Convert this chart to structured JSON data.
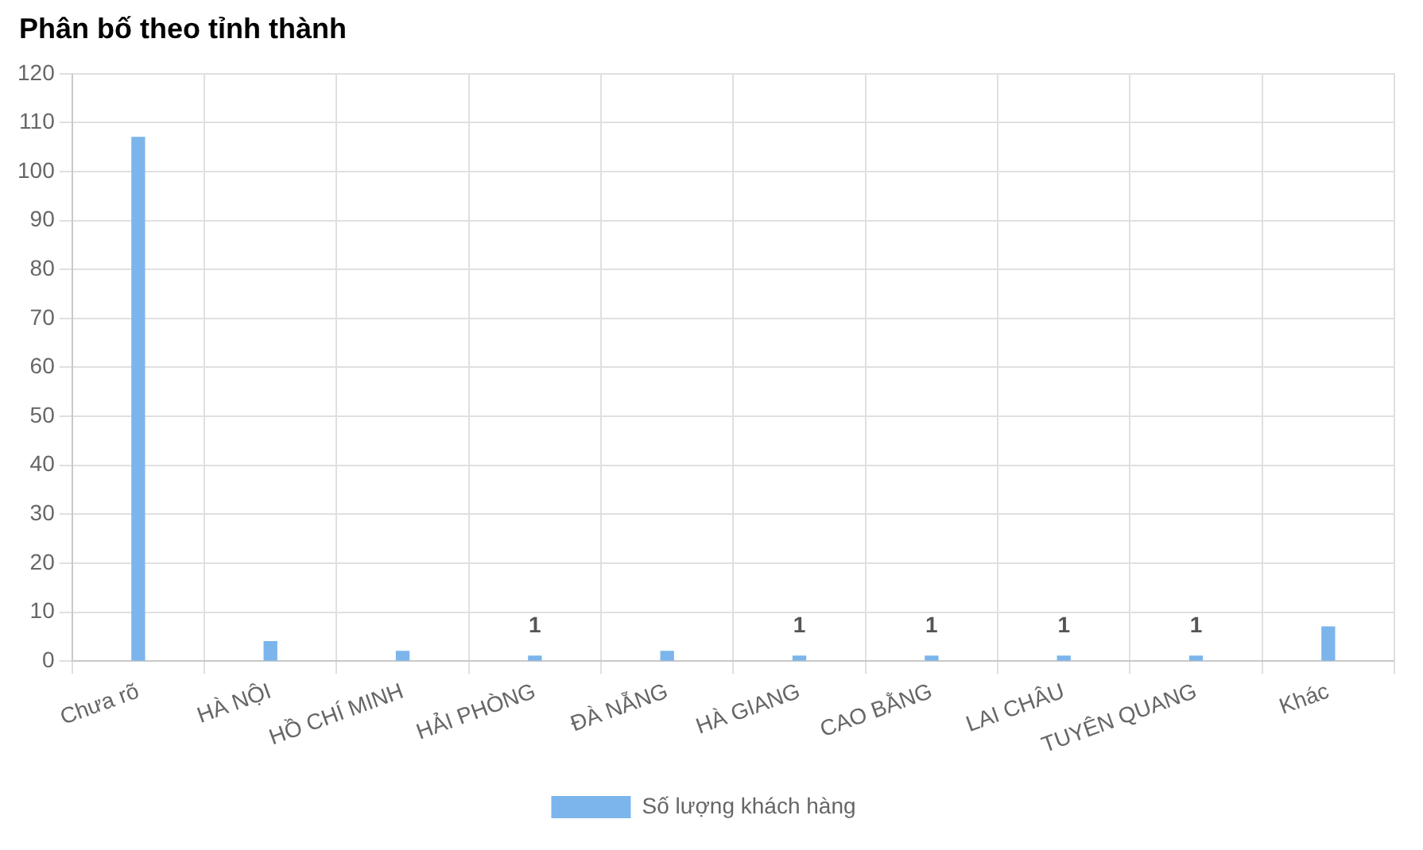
{
  "chart_data": {
    "type": "bar",
    "title": "Phân bố theo tỉnh thành",
    "categories": [
      "Chưa rõ",
      "HÀ NỘI",
      "HỒ CHÍ MINH",
      "HẢI PHÒNG",
      "ĐÀ NẴNG",
      "HÀ GIANG",
      "CAO BẰNG",
      "LAI CHÂU",
      "TUYÊN QUANG",
      "Khác"
    ],
    "series": [
      {
        "name": "Số lượng khách hàng",
        "color": "#7cb5ec",
        "values": [
          107,
          4,
          2,
          1,
          2,
          1,
          1,
          1,
          1,
          7
        ],
        "value_labels": [
          null,
          null,
          null,
          "1",
          null,
          "1",
          "1",
          "1",
          "1",
          null
        ]
      }
    ],
    "ylim": [
      0,
      120
    ],
    "yticks": [
      0,
      10,
      20,
      30,
      40,
      50,
      60,
      70,
      80,
      90,
      100,
      110,
      120
    ],
    "grid": true,
    "legend": "bottom"
  }
}
